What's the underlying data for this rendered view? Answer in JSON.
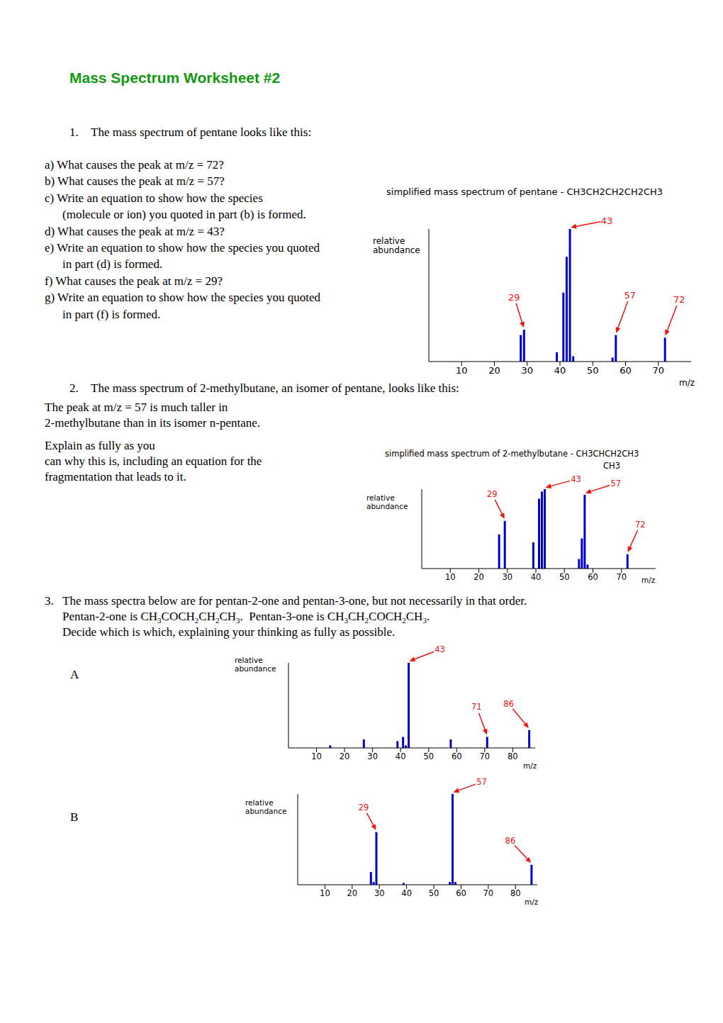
{
  "document": {
    "title": "Mass Spectrum Worksheet #2",
    "questions": [
      {
        "number": "1.",
        "text": "The mass spectrum of pentane looks like this:",
        "parts": [
          [
            "a) What causes the peak at m/z = 72?"
          ],
          [
            "b) What causes the peak at m/z = 57?"
          ],
          [
            "c) Write an equation to show how the species",
            "(molecule or ion) you quoted in part (b) is formed."
          ],
          [
            "d) What causes the peak at m/z = 43?"
          ],
          [
            "e) Write an equation to show how the species you quoted",
            "in part (d) is formed."
          ],
          [
            "f) What causes the peak at m/z = 29?"
          ],
          [
            "g) Write an equation to show how the species you quoted",
            "in part (f) is formed."
          ]
        ]
      },
      {
        "number": "2.",
        "text": "The mass spectrum of 2-methylbutane, an isomer of pentane, looks like this:",
        "paragraphs": [
          [
            "The peak at m/z = 57 is much taller in",
            "2-methylbutane than in its isomer n-pentane."
          ],
          [
            "Explain as fully as you",
            "can why this is, including an equation for the",
            "fragmentation that leads to it."
          ]
        ]
      },
      {
        "number": "3.",
        "text": "The mass spectra below are for pentan-2-one and pentan-3-one, but not necessarily in that order.",
        "lines": [
          "Pentan-2-one is CH3COCH2CH2CH3.  Pentan-3-one is CH3CH2COCH2CH3.",
          "Decide which is which, explaining your thinking as fully as possible."
        ]
      }
    ],
    "spectrum_labels": [
      "A",
      "B"
    ]
  },
  "chart_data": [
    {
      "type": "bar",
      "title": "simplified mass spectrum of pentane - CH3CH2CH2CH2CH3",
      "y_label": "relative abundance",
      "x_label": "m/z",
      "x": [
        28,
        29,
        39,
        41,
        42,
        43,
        44,
        56,
        57,
        72
      ],
      "values": [
        20,
        24,
        7,
        52,
        79,
        100,
        4,
        3,
        20,
        18
      ],
      "color": "#0000cc",
      "xlim": [
        0,
        80
      ],
      "xticks": [
        10,
        20,
        30,
        40,
        50,
        60,
        70
      ],
      "ylim": [
        0,
        100
      ],
      "tick_labels": "x",
      "annotations": [
        {
          "x": 29,
          "label": "29"
        },
        {
          "x": 43,
          "label": "43"
        },
        {
          "x": 57,
          "label": "57"
        },
        {
          "x": 72,
          "label": "72"
        }
      ]
    },
    {
      "type": "bar",
      "title": "simplified mass spectrum of 2-methylbutane - CH3CHCH2CH3",
      "subtitle": "CH3",
      "y_label": "relative abundance",
      "x_label": "m/z",
      "x": [
        27,
        29,
        39,
        41,
        42,
        43,
        55,
        56,
        57,
        58,
        72
      ],
      "values": [
        43,
        60,
        33,
        88,
        97,
        100,
        12,
        38,
        93,
        5,
        18
      ],
      "color": "#0000cc",
      "xlim": [
        0,
        82
      ],
      "xticks": [
        10,
        20,
        30,
        40,
        50,
        60,
        70
      ],
      "ylim": [
        0,
        100
      ],
      "tick_labels": "x",
      "annotations": [
        {
          "x": 29,
          "label": "29"
        },
        {
          "x": 43,
          "label": "43"
        },
        {
          "x": 57,
          "label": "57"
        },
        {
          "x": 72,
          "label": "72"
        }
      ]
    },
    {
      "type": "bar",
      "y_label": "relative abundance",
      "x_label": "m/z",
      "x": [
        15,
        27,
        39,
        41,
        42,
        43,
        58,
        71,
        86
      ],
      "values": [
        3,
        10,
        8,
        13,
        3,
        100,
        10,
        13,
        21
      ],
      "color": "#0000cc",
      "xlim": [
        0,
        88
      ],
      "xticks": [
        10,
        20,
        30,
        40,
        50,
        60,
        70,
        80
      ],
      "ylim": [
        0,
        100
      ],
      "tick_labels": "x",
      "annotations": [
        {
          "x": 43,
          "label": "43"
        },
        {
          "x": 71,
          "label": "71"
        },
        {
          "x": 86,
          "label": "86"
        }
      ]
    },
    {
      "type": "bar",
      "y_label": "relative abundance",
      "x_label": "m/z",
      "x": [
        27,
        28,
        29,
        39,
        56,
        57,
        58,
        86
      ],
      "values": [
        14,
        3,
        58,
        2,
        3,
        100,
        3,
        22
      ],
      "color": "#0000cc",
      "xlim": [
        0,
        88
      ],
      "xticks": [
        10,
        20,
        30,
        40,
        50,
        60,
        70,
        80
      ],
      "ylim": [
        0,
        100
      ],
      "tick_labels": "x",
      "annotations": [
        {
          "x": 29,
          "label": "29"
        },
        {
          "x": 57,
          "label": "57"
        },
        {
          "x": 86,
          "label": "86"
        }
      ]
    }
  ]
}
